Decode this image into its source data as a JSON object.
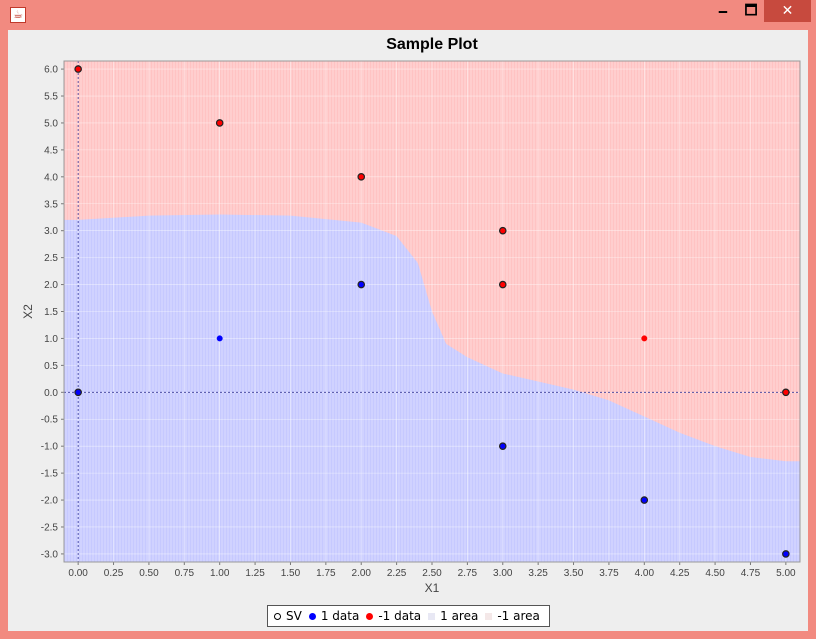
{
  "window": {
    "minimize": "🗕",
    "maximize": "🗖",
    "close": "✕",
    "icon": "java-app-icon"
  },
  "colors": {
    "frame": "#f28a80",
    "positive_area": "#c6c9ff",
    "negative_area": "#ffc3c3",
    "positive_point": "#0000ff",
    "negative_point": "#ff0000"
  },
  "chart_data": {
    "type": "scatter",
    "title": "Sample Plot",
    "xlabel": "X1",
    "ylabel": "X2",
    "xlim": [
      0.0,
      5.0
    ],
    "ylim": [
      -3.0,
      6.0
    ],
    "x_ticks": [
      "0.00",
      "0.25",
      "0.50",
      "0.75",
      "1.00",
      "1.25",
      "1.50",
      "1.75",
      "2.00",
      "2.25",
      "2.50",
      "2.75",
      "3.00",
      "3.25",
      "3.50",
      "3.75",
      "4.00",
      "4.25",
      "4.50",
      "4.75",
      "5.00"
    ],
    "y_ticks": [
      "-3.0",
      "-2.5",
      "-2.0",
      "-1.5",
      "-1.0",
      "-0.5",
      "0.0",
      "0.5",
      "1.0",
      "1.5",
      "2.0",
      "2.5",
      "3.0",
      "3.5",
      "4.0",
      "4.5",
      "5.0",
      "5.5",
      "6.0"
    ],
    "grid": true,
    "legend_position": "bottom",
    "legend": [
      "SV",
      "1 data",
      "-1 data",
      "1 area",
      "-1 area"
    ],
    "series": [
      {
        "name": "1 data",
        "color": "#0000ff",
        "points": [
          {
            "x": 0,
            "y": 0,
            "sv": true
          },
          {
            "x": 1,
            "y": 1,
            "sv": false
          },
          {
            "x": 2,
            "y": 2,
            "sv": true
          },
          {
            "x": 3,
            "y": -1,
            "sv": true
          },
          {
            "x": 4,
            "y": -2,
            "sv": true
          },
          {
            "x": 5,
            "y": -3,
            "sv": true
          }
        ]
      },
      {
        "name": "-1 data",
        "color": "#ff0000",
        "points": [
          {
            "x": 0,
            "y": 6,
            "sv": true
          },
          {
            "x": 1,
            "y": 5,
            "sv": true
          },
          {
            "x": 2,
            "y": 4,
            "sv": true
          },
          {
            "x": 3,
            "y": 3,
            "sv": true
          },
          {
            "x": 3,
            "y": 2,
            "sv": true
          },
          {
            "x": 4,
            "y": 1,
            "sv": false
          },
          {
            "x": 5,
            "y": 0,
            "sv": true
          }
        ]
      }
    ],
    "decision_boundary": [
      {
        "x": 0.0,
        "y": 3.2
      },
      {
        "x": 0.5,
        "y": 3.28
      },
      {
        "x": 1.0,
        "y": 3.3
      },
      {
        "x": 1.5,
        "y": 3.28
      },
      {
        "x": 2.0,
        "y": 3.15
      },
      {
        "x": 2.25,
        "y": 2.9
      },
      {
        "x": 2.4,
        "y": 2.4
      },
      {
        "x": 2.5,
        "y": 1.5
      },
      {
        "x": 2.6,
        "y": 0.9
      },
      {
        "x": 2.75,
        "y": 0.65
      },
      {
        "x": 3.0,
        "y": 0.35
      },
      {
        "x": 3.25,
        "y": 0.2
      },
      {
        "x": 3.5,
        "y": 0.05
      },
      {
        "x": 3.75,
        "y": -0.15
      },
      {
        "x": 4.0,
        "y": -0.45
      },
      {
        "x": 4.25,
        "y": -0.75
      },
      {
        "x": 4.5,
        "y": -1.0
      },
      {
        "x": 4.75,
        "y": -1.2
      },
      {
        "x": 5.0,
        "y": -1.28
      }
    ]
  }
}
